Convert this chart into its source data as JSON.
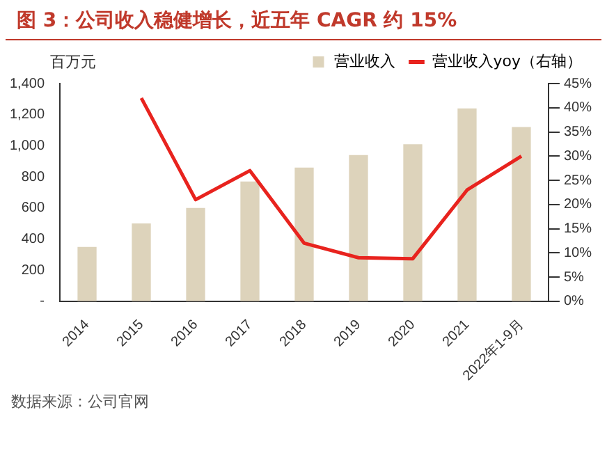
{
  "chart_data": {
    "type": "bar",
    "title": "图 3：公司收入稳健增长，近五年 CAGR 约 15%",
    "ylabel": "百万元",
    "categories": [
      "2014",
      "2015",
      "2016",
      "2017",
      "2018",
      "2019",
      "2020",
      "2021",
      "2022年1-9月"
    ],
    "series": [
      {
        "name": "营业收入",
        "color": "#ddd3bb",
        "values": [
          350,
          500,
          600,
          770,
          860,
          940,
          1010,
          1240,
          1120
        ]
      },
      {
        "name": "营业收入yoy（右轴）",
        "type": "line",
        "axis": "y2",
        "color": "#e8231e",
        "values": [
          null,
          42,
          21,
          27,
          12,
          9,
          8.8,
          23,
          30
        ]
      }
    ],
    "ylim": [
      0,
      1400
    ],
    "yticks": [
      {
        "value": 0,
        "label": "-"
      },
      200,
      400,
      600,
      800,
      {
        "value": 1000,
        "label": "1,000"
      },
      {
        "value": 1200,
        "label": "1,200"
      },
      {
        "value": 1400,
        "label": "1,400"
      }
    ],
    "y2lim": [
      0,
      45
    ],
    "y2ticks": [
      {
        "value": 0,
        "label": "0%"
      },
      {
        "value": 5,
        "label": "5%"
      },
      {
        "value": 10,
        "label": "10%"
      },
      {
        "value": 15,
        "label": "15%"
      },
      {
        "value": 20,
        "label": "20%"
      },
      {
        "value": 25,
        "label": "25%"
      },
      {
        "value": 30,
        "label": "30%"
      },
      {
        "value": 35,
        "label": "35%"
      },
      {
        "value": 40,
        "label": "40%"
      },
      {
        "value": 45,
        "label": "45%"
      }
    ],
    "grid": false,
    "legend": "top",
    "marker": "none",
    "line_style": "solid",
    "annotations": [
      "数据来源：公司官网"
    ]
  }
}
